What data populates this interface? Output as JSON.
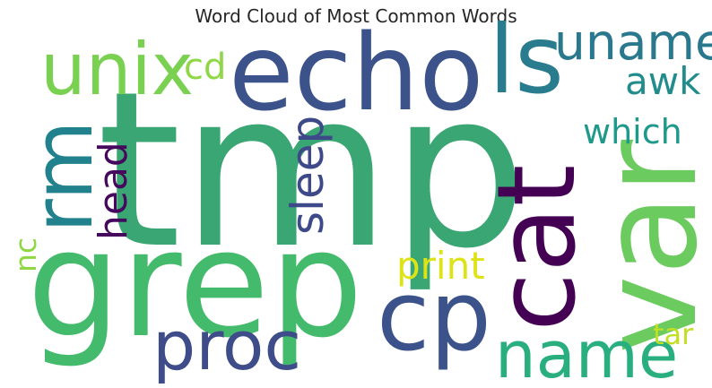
{
  "chart_data": {
    "type": "wordcloud",
    "title": "Word Cloud of Most Common Words",
    "words": [
      {
        "text": "tmp",
        "color": "#3aa673",
        "vertical": false
      },
      {
        "text": "grep",
        "color": "#44bb6c",
        "vertical": false
      },
      {
        "text": "var",
        "color": "#6ccb5f",
        "vertical": true
      },
      {
        "text": "cat",
        "color": "#440154",
        "vertical": true
      },
      {
        "text": "echo",
        "color": "#3b528b",
        "vertical": false
      },
      {
        "text": "rm",
        "color": "#21818c",
        "vertical": true
      },
      {
        "text": "cp",
        "color": "#3b528b",
        "vertical": false
      },
      {
        "text": "ls",
        "color": "#287c8e",
        "vertical": false
      },
      {
        "text": "unix",
        "color": "#7ad151",
        "vertical": false
      },
      {
        "text": "proc",
        "color": "#3e4d8a",
        "vertical": false
      },
      {
        "text": "name",
        "color": "#29af7f",
        "vertical": false
      },
      {
        "text": "uname",
        "color": "#2a788e",
        "vertical": false
      },
      {
        "text": "sleep",
        "color": "#3e4989",
        "vertical": true
      },
      {
        "text": "head",
        "color": "#46085c",
        "vertical": true
      },
      {
        "text": "awk",
        "color": "#228c8d",
        "vertical": false
      },
      {
        "text": "which",
        "color": "#1f998a",
        "vertical": false
      },
      {
        "text": "cd",
        "color": "#8fd744",
        "vertical": false
      },
      {
        "text": "print",
        "color": "#dde318",
        "vertical": false
      },
      {
        "text": "nc",
        "color": "#8fd744",
        "vertical": true
      },
      {
        "text": "tar",
        "color": "#c2df23",
        "vertical": false
      }
    ]
  }
}
